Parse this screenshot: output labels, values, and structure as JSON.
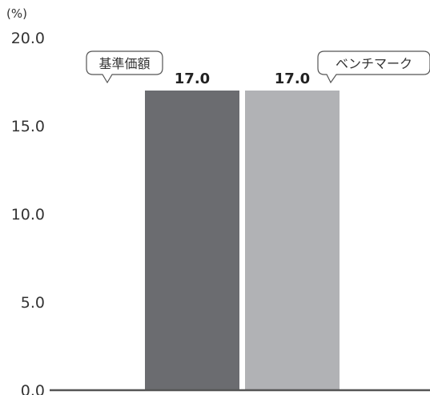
{
  "chart_data": {
    "type": "bar",
    "unit_label": "(%)",
    "ylim": [
      0,
      20
    ],
    "yticks": [
      "0.0",
      "5.0",
      "10.0",
      "15.0",
      "20.0"
    ],
    "grid": false,
    "series": [
      {
        "name": "基準価額",
        "value": 17.0,
        "value_label": "17.0",
        "color": "#6b6c70"
      },
      {
        "name": "ベンチマーク",
        "value": 17.0,
        "value_label": "17.0",
        "color": "#b1b2b5"
      }
    ],
    "axis_color": "#555555"
  }
}
